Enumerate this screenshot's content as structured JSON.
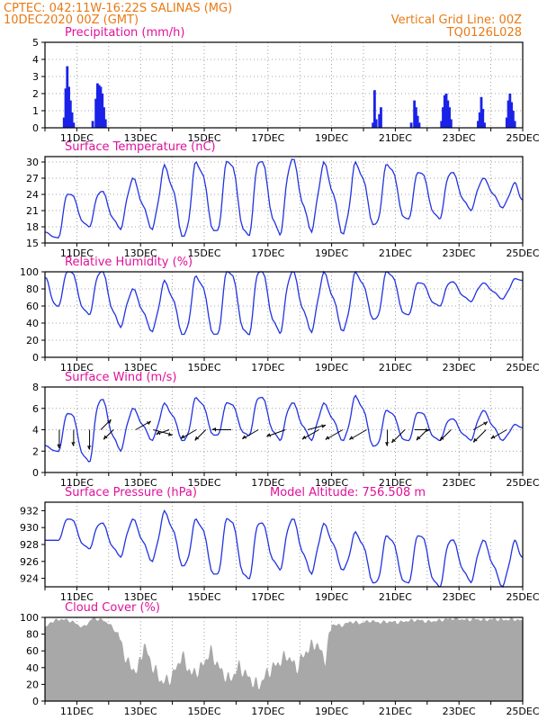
{
  "header": {
    "line1": "CPTEC:   042:11W-16:22S   SALINAS (MG)",
    "line2": "10DEC2020 00Z (GMT)",
    "grid_note": "Vertical Grid Line: 00Z",
    "code": "TQ0126L028"
  },
  "colors": {
    "header": "#e87a14",
    "titles": "#e0119a",
    "series": "#2233e0",
    "bars": "#1a22e8",
    "cloud": "#a8a8a8",
    "wind_arrows": "#000000"
  },
  "x_axis": {
    "unit": "day of December 2020 (00Z)",
    "range": [
      10.0,
      25.0
    ],
    "tick_values": [
      11,
      13,
      15,
      17,
      19,
      21,
      23,
      25
    ],
    "tick_labels": [
      "11DEC",
      "13DEC",
      "15DEC",
      "17DEC",
      "19DEC",
      "21DEC",
      "23DEC",
      "25DEC"
    ]
  },
  "chart_data": [
    {
      "id": "precip",
      "type": "bar",
      "title": "Precipitation (mm/h)",
      "ylim": [
        0,
        5
      ],
      "yticks": [
        0,
        1,
        2,
        3,
        4,
        5
      ],
      "grid": true,
      "points": [
        [
          10.6,
          0.6
        ],
        [
          10.65,
          2.3
        ],
        [
          10.7,
          3.6
        ],
        [
          10.75,
          2.4
        ],
        [
          10.8,
          1.6
        ],
        [
          10.85,
          0.9
        ],
        [
          10.9,
          0.3
        ],
        [
          11.5,
          0.4
        ],
        [
          11.6,
          1.7
        ],
        [
          11.65,
          2.6
        ],
        [
          11.7,
          2.5
        ],
        [
          11.75,
          2.4
        ],
        [
          11.8,
          2.0
        ],
        [
          11.85,
          1.2
        ],
        [
          11.9,
          0.5
        ],
        [
          20.3,
          0.3
        ],
        [
          20.35,
          2.2
        ],
        [
          20.4,
          0.5
        ],
        [
          20.5,
          0.8
        ],
        [
          20.55,
          1.2
        ],
        [
          21.5,
          0.3
        ],
        [
          21.6,
          1.6
        ],
        [
          21.65,
          1.2
        ],
        [
          21.7,
          0.7
        ],
        [
          21.75,
          0.3
        ],
        [
          22.45,
          0.4
        ],
        [
          22.5,
          1.2
        ],
        [
          22.55,
          1.9
        ],
        [
          22.6,
          2.0
        ],
        [
          22.65,
          1.6
        ],
        [
          22.7,
          1.2
        ],
        [
          22.75,
          0.5
        ],
        [
          23.6,
          0.4
        ],
        [
          23.65,
          0.9
        ],
        [
          23.7,
          1.8
        ],
        [
          23.75,
          1.1
        ],
        [
          23.8,
          0.3
        ],
        [
          24.5,
          0.6
        ],
        [
          24.55,
          1.6
        ],
        [
          24.6,
          2.0
        ],
        [
          24.65,
          1.5
        ],
        [
          24.7,
          1.0
        ],
        [
          24.75,
          0.4
        ]
      ]
    },
    {
      "id": "temperature",
      "type": "line",
      "title": "Surface Temperature (nC)",
      "ylim": [
        15,
        31
      ],
      "yticks": [
        15,
        18,
        21,
        24,
        27,
        30
      ],
      "grid": true,
      "daily_min": [
        16,
        18,
        17.5,
        17.5,
        16.3,
        17.3,
        16.5,
        16.5,
        17,
        16.7,
        18.5,
        19.5,
        19.5,
        21,
        21.5
      ],
      "daily_max": [
        24,
        24.5,
        27,
        29.5,
        30,
        30,
        30,
        30.5,
        30,
        30,
        29.5,
        28,
        28,
        27,
        26.2
      ],
      "start": [
        10.0,
        17.0
      ],
      "end": [
        25.0,
        23.0
      ]
    },
    {
      "id": "humidity",
      "type": "line",
      "title": "Relative Humidity (%)",
      "ylim": [
        0,
        100
      ],
      "yticks": [
        0,
        20,
        40,
        60,
        80,
        100
      ],
      "grid": true,
      "daily_min": [
        60,
        50,
        35,
        30,
        27,
        27,
        27,
        28,
        29,
        31,
        45,
        50,
        60,
        65,
        68
      ],
      "daily_max": [
        100,
        100,
        80,
        90,
        95,
        100,
        100,
        100,
        100,
        100,
        100,
        87,
        88,
        87,
        92
      ],
      "start": [
        10.0,
        93.0
      ],
      "end": [
        25.0,
        90.0
      ]
    },
    {
      "id": "wind",
      "type": "line",
      "title": "Surface Wind (m/s)",
      "ylim": [
        0,
        8
      ],
      "yticks": [
        0,
        2,
        4,
        6,
        8
      ],
      "grid": true,
      "daily_min": [
        2,
        1,
        2,
        3,
        3,
        3.5,
        3.5,
        3,
        3,
        3,
        2.5,
        3,
        3,
        3,
        3
      ],
      "daily_max": [
        5.5,
        6.8,
        6,
        6.5,
        7,
        6.5,
        7,
        6.5,
        6.5,
        7.2,
        5.8,
        5.6,
        5,
        5.8,
        4.5
      ],
      "start": [
        10.0,
        2.5
      ],
      "end": [
        25.0,
        4.2
      ],
      "arrows": [
        {
          "day": 10.45,
          "dir_deg": 180,
          "speed": 3.6
        },
        {
          "day": 10.9,
          "dir_deg": 180,
          "speed": 3.0
        },
        {
          "day": 11.4,
          "dir_deg": 180,
          "speed": 4.0
        },
        {
          "day": 11.75,
          "dir_deg": 45,
          "speed": 2.5
        },
        {
          "day": 12.15,
          "dir_deg": 225,
          "speed": 2.3
        },
        {
          "day": 12.85,
          "dir_deg": 60,
          "speed": 3.3
        },
        {
          "day": 13.4,
          "dir_deg": 105,
          "speed": 4.0
        },
        {
          "day": 13.9,
          "dir_deg": 250,
          "speed": 2.3
        },
        {
          "day": 14.75,
          "dir_deg": 240,
          "speed": 3.4
        },
        {
          "day": 15.05,
          "dir_deg": 225,
          "speed": 2.7
        },
        {
          "day": 15.85,
          "dir_deg": 270,
          "speed": 3.8
        },
        {
          "day": 16.7,
          "dir_deg": 240,
          "speed": 3.6
        },
        {
          "day": 17.55,
          "dir_deg": 250,
          "speed": 4.0
        },
        {
          "day": 18.25,
          "dir_deg": 75,
          "speed": 3.6
        },
        {
          "day": 18.6,
          "dir_deg": 240,
          "speed": 3.8
        },
        {
          "day": 19.35,
          "dir_deg": 240,
          "speed": 4.0
        },
        {
          "day": 20.1,
          "dir_deg": 240,
          "speed": 4.0
        },
        {
          "day": 20.75,
          "dir_deg": 180,
          "speed": 3.0
        },
        {
          "day": 21.3,
          "dir_deg": 225,
          "speed": 3.6
        },
        {
          "day": 21.6,
          "dir_deg": 90,
          "speed": 2.7
        },
        {
          "day": 22.0,
          "dir_deg": 225,
          "speed": 2.6
        },
        {
          "day": 22.75,
          "dir_deg": 225,
          "speed": 2.8
        },
        {
          "day": 23.45,
          "dir_deg": 60,
          "speed": 3.0
        },
        {
          "day": 23.85,
          "dir_deg": 225,
          "speed": 3.4
        },
        {
          "day": 24.5,
          "dir_deg": 240,
          "speed": 3.5
        }
      ]
    },
    {
      "id": "pressure",
      "type": "line",
      "title": "Surface Pressure (hPa)",
      "subtitle": "Model Altitude: 756.508  m",
      "ylim": [
        923,
        933
      ],
      "yticks": [
        924,
        926,
        928,
        930,
        932
      ],
      "grid": false,
      "daily_min": [
        928.5,
        927.5,
        926.5,
        926,
        925.5,
        924.5,
        924,
        925,
        924.5,
        925,
        923.5,
        923.5,
        923,
        923.5,
        923
      ],
      "daily_max": [
        931,
        930.5,
        931,
        932,
        931,
        931,
        930.5,
        931,
        930.5,
        929.5,
        929,
        929,
        928.5,
        928.5,
        928.5
      ],
      "start": [
        10.0,
        928.5
      ],
      "end": [
        25.0,
        926.5
      ]
    },
    {
      "id": "cloud",
      "type": "area",
      "title": "Cloud Cover (%)",
      "ylim": [
        0,
        100
      ],
      "yticks": [
        0,
        20,
        40,
        60,
        80,
        100
      ],
      "grid": false,
      "points": [
        [
          10.0,
          87
        ],
        [
          10.2,
          95
        ],
        [
          10.5,
          98
        ],
        [
          10.8,
          96
        ],
        [
          11.0,
          92
        ],
        [
          11.2,
          88
        ],
        [
          11.5,
          99
        ],
        [
          11.8,
          97
        ],
        [
          12.0,
          93
        ],
        [
          12.3,
          80
        ],
        [
          12.6,
          45
        ],
        [
          12.9,
          35
        ],
        [
          13.1,
          68
        ],
        [
          13.4,
          40
        ],
        [
          13.7,
          22
        ],
        [
          14.0,
          30
        ],
        [
          14.3,
          55
        ],
        [
          14.6,
          32
        ],
        [
          14.9,
          40
        ],
        [
          15.2,
          60
        ],
        [
          15.5,
          38
        ],
        [
          15.8,
          25
        ],
        [
          16.1,
          42
        ],
        [
          16.4,
          28
        ],
        [
          16.7,
          18
        ],
        [
          17.0,
          35
        ],
        [
          17.3,
          45
        ],
        [
          17.6,
          55
        ],
        [
          17.9,
          40
        ],
        [
          18.2,
          60
        ],
        [
          18.5,
          70
        ],
        [
          18.8,
          50
        ],
        [
          19.0,
          92
        ],
        [
          19.3,
          90
        ],
        [
          19.6,
          95
        ],
        [
          19.9,
          93
        ],
        [
          20.2,
          96
        ],
        [
          20.5,
          94
        ],
        [
          20.8,
          95
        ],
        [
          21.1,
          94
        ],
        [
          21.4,
          96
        ],
        [
          21.7,
          97
        ],
        [
          22.0,
          95
        ],
        [
          22.3,
          96
        ],
        [
          22.6,
          98
        ],
        [
          22.9,
          99
        ],
        [
          23.2,
          97
        ],
        [
          23.5,
          98
        ],
        [
          23.8,
          97
        ],
        [
          24.1,
          98
        ],
        [
          24.4,
          97
        ],
        [
          24.7,
          98
        ],
        [
          25.0,
          96
        ]
      ]
    }
  ]
}
